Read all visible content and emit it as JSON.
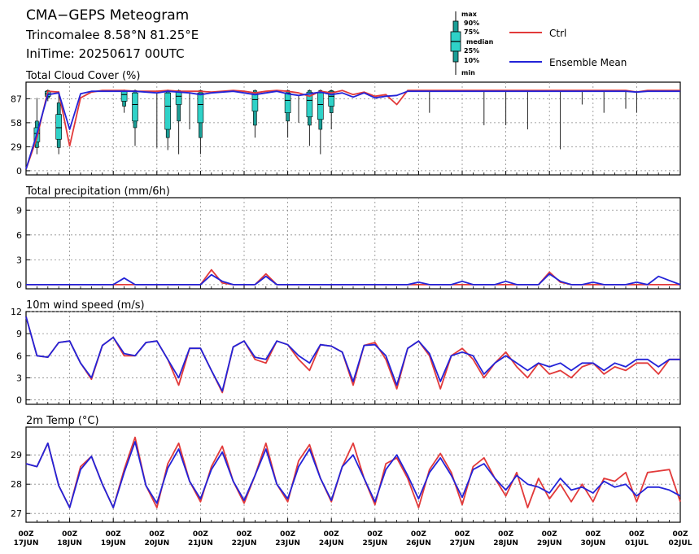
{
  "header": {
    "title": "CMA−GEPS Meteogram",
    "location": "Trincomalee 8.58°N 81.25°E",
    "init_time": "IniTime: 20250617 00UTC"
  },
  "legend": {
    "box_labels": [
      "max",
      "90%",
      "75%",
      "median",
      "25%",
      "10%",
      "min"
    ],
    "ctrl_label": "Ctrl",
    "mean_label": "Ensemble Mean",
    "ctrl_color": "#e23a3a",
    "mean_color": "#2323d8",
    "box_fill": "#1a9e96",
    "box_fill_light": "#2fd2c8"
  },
  "x_axis": {
    "tick_labels": [
      [
        "00Z",
        "17JUN"
      ],
      [
        "00Z",
        "18JUN"
      ],
      [
        "00Z",
        "19JUN"
      ],
      [
        "00Z",
        "20JUN"
      ],
      [
        "00Z",
        "21JUN"
      ],
      [
        "00Z",
        "22JUN"
      ],
      [
        "00Z",
        "23JUN"
      ],
      [
        "00Z",
        "24JUN"
      ],
      [
        "00Z",
        "25JUN"
      ],
      [
        "00Z",
        "26JUN"
      ],
      [
        "00Z",
        "27JUN"
      ],
      [
        "00Z",
        "28JUN"
      ],
      [
        "00Z",
        "29JUN"
      ],
      [
        "00Z",
        "30JUN"
      ],
      [
        "00Z",
        "01JUL"
      ],
      [
        "00Z",
        "02JUL"
      ]
    ]
  },
  "chart_data": [
    {
      "type": "line",
      "title": "Total Cloud Cover (%)",
      "ylim": [
        -5,
        107
      ],
      "yticks": [
        0,
        29,
        58,
        87
      ],
      "x_hours": [
        0,
        6,
        12,
        18,
        24,
        30,
        36,
        42,
        48,
        54,
        60,
        66,
        72,
        78,
        84,
        90,
        96,
        102,
        108,
        114,
        120,
        126,
        132,
        138,
        144,
        150,
        156,
        162,
        168,
        174,
        180,
        186,
        192,
        198,
        204,
        210,
        216,
        222,
        228,
        234,
        240,
        246,
        252,
        258,
        264,
        270,
        276,
        282,
        288,
        294,
        300,
        306,
        312,
        318,
        324,
        330,
        336,
        342,
        348,
        354,
        360
      ],
      "ctrl": [
        2,
        40,
        96,
        95,
        30,
        88,
        95,
        97,
        97,
        97,
        96,
        96,
        96,
        97,
        96,
        96,
        96,
        95,
        96,
        97,
        96,
        94,
        96,
        97,
        96,
        94,
        90,
        96,
        94,
        97,
        92,
        95,
        90,
        92,
        80,
        97,
        97,
        97,
        97,
        97,
        97,
        97,
        97,
        97,
        97,
        97,
        97,
        97,
        97,
        97,
        97,
        97,
        97,
        97,
        97,
        97,
        95,
        97,
        97,
        97,
        97
      ],
      "mean": [
        2,
        45,
        92,
        94,
        50,
        93,
        96,
        96,
        96,
        96,
        96,
        95,
        94,
        96,
        95,
        94,
        92,
        94,
        95,
        96,
        94,
        92,
        94,
        96,
        93,
        91,
        93,
        95,
        92,
        94,
        89,
        94,
        88,
        90,
        91,
        96,
        96,
        96,
        96,
        96,
        96,
        96,
        96,
        96,
        96,
        96,
        96,
        96,
        96,
        96,
        96,
        96,
        96,
        96,
        96,
        96,
        95,
        96,
        96,
        96,
        96
      ],
      "boxes": [
        {
          "x": 6,
          "min": 20,
          "p10": 28,
          "p25": 35,
          "med": 45,
          "p75": 52,
          "p90": 60,
          "max": 88
        },
        {
          "x": 12,
          "min": 84,
          "p10": 88,
          "p25": 90,
          "med": 93,
          "p75": 96,
          "p90": 97,
          "max": 98
        },
        {
          "x": 18,
          "min": 20,
          "p10": 28,
          "p25": 38,
          "med": 52,
          "p75": 68,
          "p90": 82,
          "max": 96
        },
        {
          "x": 54,
          "min": 70,
          "p10": 78,
          "p25": 84,
          "med": 92,
          "p75": 96,
          "p90": 97,
          "max": 98
        },
        {
          "x": 60,
          "min": 30,
          "p10": 52,
          "p25": 60,
          "med": 80,
          "p75": 94,
          "p90": 97,
          "max": 98
        },
        {
          "x": 78,
          "min": 25,
          "p10": 40,
          "p25": 50,
          "med": 78,
          "p75": 94,
          "p90": 97,
          "max": 98
        },
        {
          "x": 84,
          "min": 20,
          "p10": 60,
          "p25": 80,
          "med": 90,
          "p75": 96,
          "p90": 97,
          "max": 98
        },
        {
          "x": 96,
          "min": 20,
          "p10": 40,
          "p25": 58,
          "med": 80,
          "p75": 94,
          "p90": 97,
          "max": 98
        },
        {
          "x": 126,
          "min": 40,
          "p10": 55,
          "p25": 72,
          "med": 86,
          "p75": 95,
          "p90": 97,
          "max": 98
        },
        {
          "x": 144,
          "min": 40,
          "p10": 60,
          "p25": 70,
          "med": 85,
          "p75": 94,
          "p90": 97,
          "max": 98
        },
        {
          "x": 156,
          "min": 30,
          "p10": 55,
          "p25": 65,
          "med": 85,
          "p75": 95,
          "p90": 97,
          "max": 98
        },
        {
          "x": 162,
          "min": 20,
          "p10": 50,
          "p25": 62,
          "med": 80,
          "p75": 94,
          "p90": 97,
          "max": 98
        },
        {
          "x": 168,
          "min": 50,
          "p10": 70,
          "p25": 78,
          "med": 90,
          "p75": 96,
          "p90": 97,
          "max": 98
        }
      ],
      "spikes": [
        {
          "x": 72,
          "min": 28
        },
        {
          "x": 90,
          "min": 50
        },
        {
          "x": 150,
          "min": 58
        },
        {
          "x": 222,
          "min": 70
        },
        {
          "x": 252,
          "min": 55
        },
        {
          "x": 264,
          "min": 55
        },
        {
          "x": 276,
          "min": 50
        },
        {
          "x": 294,
          "min": 26
        },
        {
          "x": 306,
          "min": 80
        },
        {
          "x": 318,
          "min": 70
        },
        {
          "x": 330,
          "min": 75
        },
        {
          "x": 336,
          "min": 70
        }
      ]
    },
    {
      "type": "line",
      "title": "Total precipitation (mm/6h)",
      "ylim": [
        -0.5,
        10.5
      ],
      "yticks": [
        0,
        3,
        6,
        9
      ],
      "x_hours": [
        0,
        6,
        12,
        18,
        24,
        30,
        36,
        42,
        48,
        54,
        60,
        66,
        72,
        78,
        84,
        90,
        96,
        102,
        108,
        114,
        120,
        126,
        132,
        138,
        144,
        150,
        156,
        162,
        168,
        174,
        180,
        186,
        192,
        198,
        204,
        210,
        216,
        222,
        228,
        234,
        240,
        246,
        252,
        258,
        264,
        270,
        276,
        282,
        288,
        294,
        300,
        306,
        312,
        318,
        324,
        330,
        336,
        342,
        348,
        354,
        360
      ],
      "ctrl": [
        0,
        0,
        0,
        0,
        0,
        0,
        0,
        0,
        0,
        0,
        0,
        0,
        0,
        0,
        0,
        0,
        0,
        1.8,
        0.2,
        0,
        0,
        0,
        1.3,
        0,
        0,
        0,
        0,
        0,
        0,
        0,
        0,
        0,
        0,
        0,
        0,
        0,
        0,
        0,
        0,
        0,
        0,
        0,
        0,
        0,
        0,
        0,
        0,
        0,
        1.5,
        0.3,
        0,
        0,
        0,
        0,
        0,
        0,
        0,
        0,
        0,
        0,
        0
      ],
      "mean": [
        0,
        0,
        0,
        0,
        0,
        0,
        0,
        0,
        0,
        0.8,
        0,
        0,
        0,
        0,
        0,
        0,
        0,
        1.2,
        0.4,
        0,
        0,
        0,
        1.0,
        0,
        0,
        0,
        0,
        0,
        0,
        0,
        0,
        0,
        0,
        0,
        0,
        0,
        0.3,
        0,
        0,
        0,
        0.4,
        0,
        0,
        0,
        0.4,
        0,
        0,
        0,
        1.3,
        0.4,
        0,
        0,
        0.3,
        0,
        0,
        0,
        0.3,
        0,
        1.0,
        0.5,
        0
      ]
    },
    {
      "type": "line",
      "title": "10m wind speed (m/s)",
      "ylim": [
        -0.6,
        12
      ],
      "yticks": [
        0,
        3,
        6,
        9,
        12
      ],
      "x_hours": [
        0,
        6,
        12,
        18,
        24,
        30,
        36,
        42,
        48,
        54,
        60,
        66,
        72,
        78,
        84,
        90,
        96,
        102,
        108,
        114,
        120,
        126,
        132,
        138,
        144,
        150,
        156,
        162,
        168,
        174,
        180,
        186,
        192,
        198,
        204,
        210,
        216,
        222,
        228,
        234,
        240,
        246,
        252,
        258,
        264,
        270,
        276,
        282,
        288,
        294,
        300,
        306,
        312,
        318,
        324,
        330,
        336,
        342,
        348,
        354,
        360
      ],
      "ctrl": [
        11.3,
        6.0,
        5.8,
        7.8,
        8.0,
        5.0,
        2.8,
        7.4,
        8.5,
        6.0,
        6.0,
        7.8,
        8.0,
        5.5,
        2.0,
        7.0,
        7.0,
        4.0,
        1.0,
        7.2,
        8.0,
        5.5,
        5.0,
        8.0,
        7.5,
        5.5,
        4.0,
        7.5,
        7.3,
        6.5,
        2.0,
        7.4,
        7.8,
        5.5,
        1.5,
        7.0,
        8.0,
        6.0,
        1.5,
        6.0,
        7.0,
        5.5,
        3.0,
        5.0,
        6.5,
        4.5,
        3.0,
        5.0,
        3.5,
        4.0,
        3.0,
        4.5,
        5.0,
        3.5,
        4.5,
        4.0,
        5.0,
        5.0,
        3.5,
        5.5,
        5.5
      ],
      "mean": [
        11.3,
        6.0,
        5.8,
        7.8,
        8.0,
        5.0,
        3.0,
        7.4,
        8.5,
        6.3,
        6.0,
        7.8,
        8.0,
        5.5,
        3.0,
        7.0,
        7.0,
        4.0,
        1.2,
        7.2,
        8.0,
        5.8,
        5.5,
        8.0,
        7.5,
        6.0,
        5.0,
        7.5,
        7.3,
        6.5,
        2.5,
        7.4,
        7.5,
        6.0,
        2.0,
        7.0,
        8.0,
        6.3,
        2.5,
        6.0,
        6.5,
        6.0,
        3.5,
        5.0,
        6.0,
        5.0,
        4.0,
        5.0,
        4.5,
        5.0,
        4.0,
        5.0,
        5.0,
        4.0,
        5.0,
        4.5,
        5.5,
        5.5,
        4.5,
        5.5,
        5.5
      ]
    },
    {
      "type": "line",
      "title": "2m Temp (°C)",
      "ylim": [
        26.7,
        29.95
      ],
      "yticks": [
        27,
        28,
        29
      ],
      "x_hours": [
        0,
        6,
        12,
        18,
        24,
        30,
        36,
        42,
        48,
        54,
        60,
        66,
        72,
        78,
        84,
        90,
        96,
        102,
        108,
        114,
        120,
        126,
        132,
        138,
        144,
        150,
        156,
        162,
        168,
        174,
        180,
        186,
        192,
        198,
        204,
        210,
        216,
        222,
        228,
        234,
        240,
        246,
        252,
        258,
        264,
        270,
        276,
        282,
        288,
        294,
        300,
        306,
        312,
        318,
        324,
        330,
        336,
        342,
        348,
        354,
        360
      ],
      "ctrl": [
        28.7,
        28.6,
        29.4,
        27.95,
        27.2,
        28.6,
        28.95,
        28.0,
        27.2,
        28.5,
        29.6,
        27.95,
        27.2,
        28.7,
        29.4,
        28.1,
        27.4,
        28.6,
        29.3,
        28.1,
        27.35,
        28.3,
        29.4,
        28.0,
        27.4,
        28.8,
        29.35,
        28.2,
        27.4,
        28.6,
        29.4,
        28.2,
        27.3,
        28.7,
        28.9,
        28.2,
        27.2,
        28.5,
        29.05,
        28.4,
        27.3,
        28.6,
        28.9,
        28.2,
        27.6,
        28.4,
        27.2,
        28.2,
        27.5,
        28.0,
        27.4,
        28.0,
        27.4,
        28.2,
        28.1,
        28.4,
        27.4,
        28.4,
        28.45,
        28.5,
        27.4
      ],
      "mean": [
        28.7,
        28.6,
        29.4,
        27.95,
        27.2,
        28.5,
        28.95,
        28.0,
        27.2,
        28.4,
        29.45,
        27.95,
        27.35,
        28.55,
        29.2,
        28.1,
        27.5,
        28.5,
        29.1,
        28.1,
        27.45,
        28.3,
        29.2,
        28.0,
        27.5,
        28.6,
        29.2,
        28.2,
        27.45,
        28.6,
        29.0,
        28.2,
        27.4,
        28.5,
        29.0,
        28.3,
        27.5,
        28.4,
        28.9,
        28.3,
        27.55,
        28.5,
        28.7,
        28.2,
        27.8,
        28.3,
        28.0,
        27.9,
        27.7,
        28.2,
        27.8,
        27.9,
        27.7,
        28.1,
        27.9,
        28.0,
        27.6,
        27.9,
        27.9,
        27.8,
        27.6
      ]
    }
  ]
}
